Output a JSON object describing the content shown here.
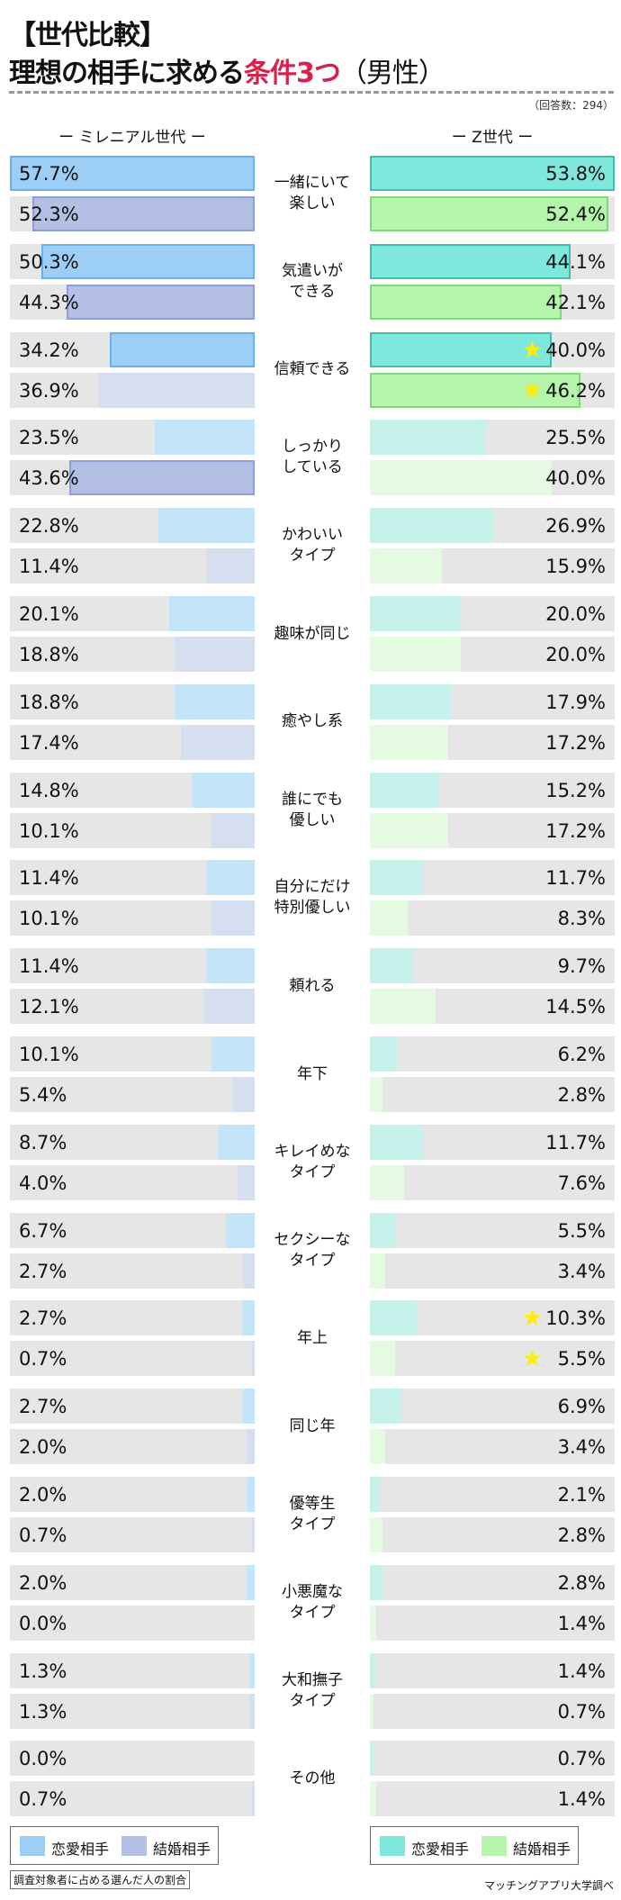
{
  "title": {
    "line1": "【世代比較】",
    "line2_a": "理想の相手に求める",
    "line2_b": "条件3つ",
    "line2_c": "（男性）"
  },
  "respondents": "（回答数：294）",
  "note": "調査対象者に占める選んだ人の割合",
  "source": "マッチングアプリ大学調べ",
  "colors": {
    "mil_love": "#9dcff6",
    "mil_marry": "#b3bfe5",
    "z_love": "#7fe8dc",
    "z_marry": "#b5f5ab",
    "mil_love_light": "#c4e5f7",
    "mil_marry_light": "#d5dff0",
    "z_love_light": "#c6f2ec",
    "z_marry_light": "#e4fbe2",
    "track": "#e6e6e6"
  },
  "chart_data": {
    "type": "bar",
    "title": "理想の相手に求める条件3つ（男性）",
    "groups": [
      "ミレニアル世代",
      "Z世代"
    ],
    "headers": {
      "mil": "ー ミレニアル世代 ー",
      "z": "ー Z世代 ー"
    },
    "legend": {
      "love": "恋愛相手",
      "marry": "結婚相手"
    },
    "categories": [
      "一緒にいて\n楽しい",
      "気遣いが\nできる",
      "信頼できる",
      "しっかり\nしている",
      "かわいい\nタイプ",
      "趣味が同じ",
      "癒やし系",
      "誰にでも\n優しい",
      "自分にだけ\n特別優しい",
      "頼れる",
      "年下",
      "キレイめな\nタイプ",
      "セクシーな\nタイプ",
      "年上",
      "同じ年",
      "優等生\nタイプ",
      "小悪魔な\nタイプ",
      "大和撫子\nタイプ",
      "その他"
    ],
    "series": [
      {
        "name": "ミレニアル世代 恋愛相手",
        "values": [
          57.7,
          50.3,
          34.2,
          23.5,
          22.8,
          20.1,
          18.8,
          14.8,
          11.4,
          11.4,
          10.1,
          8.7,
          6.7,
          2.7,
          2.7,
          2.0,
          2.0,
          1.3,
          0.0
        ]
      },
      {
        "name": "ミレニアル世代 結婚相手",
        "values": [
          52.3,
          44.3,
          36.9,
          43.6,
          11.4,
          18.8,
          17.4,
          10.1,
          10.1,
          12.1,
          5.4,
          4.0,
          2.7,
          0.7,
          2.0,
          0.7,
          0.0,
          1.3,
          0.7
        ]
      },
      {
        "name": "Z世代 恋愛相手",
        "values": [
          53.8,
          44.1,
          40.0,
          25.5,
          26.9,
          20.0,
          17.9,
          15.2,
          11.7,
          9.7,
          6.2,
          11.7,
          5.5,
          10.3,
          6.9,
          2.1,
          2.8,
          1.4,
          0.7
        ]
      },
      {
        "name": "Z世代 結婚相手",
        "values": [
          52.4,
          42.1,
          46.2,
          40.0,
          15.9,
          20.0,
          17.2,
          17.2,
          8.3,
          14.5,
          2.8,
          7.6,
          3.4,
          5.5,
          3.4,
          2.8,
          1.4,
          0.7,
          1.4
        ]
      }
    ],
    "highlighted": {
      "mil_love": [
        0,
        1,
        2
      ],
      "mil_marry": [
        0,
        1,
        3
      ],
      "z_love": [
        0,
        1,
        2
      ],
      "z_marry": [
        0,
        1,
        2
      ]
    },
    "starred": {
      "z_love": [
        2,
        13
      ],
      "z_marry": [
        2,
        13
      ]
    },
    "unit": "%"
  }
}
